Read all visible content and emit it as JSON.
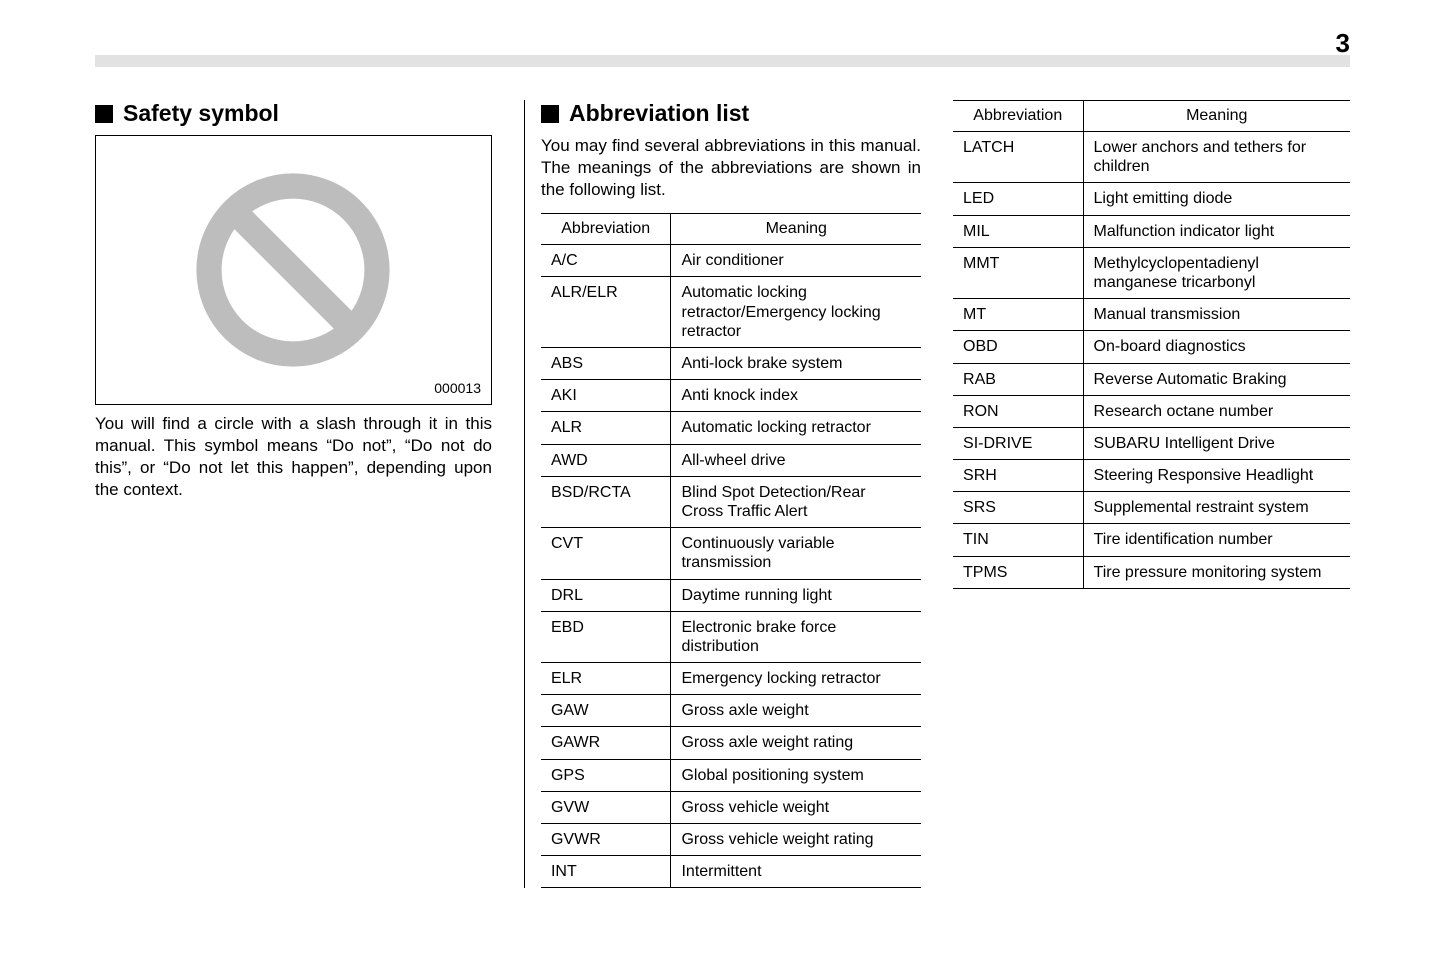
{
  "page_number": "3",
  "header_bar_color": "#e2e2e2",
  "background_color": "#ffffff",
  "text_color": "#000000",
  "safety_symbol": {
    "heading": "Safety symbol",
    "image_id": "000013",
    "circle_color": "#bdbdbd",
    "description": "You will find a circle with a slash through it in this manual. This symbol means “Do not”, “Do not do this”, or “Do not let this happen”, depending upon the context."
  },
  "abbreviation_list": {
    "heading": "Abbreviation list",
    "intro": "You may find several abbreviations in this manual. The meanings of the abbreviations are shown in the following list.",
    "columns": [
      "Abbreviation",
      "Meaning"
    ],
    "table1": [
      [
        "A/C",
        "Air conditioner"
      ],
      [
        "ALR/ELR",
        "Automatic locking retractor/Emergency locking retractor"
      ],
      [
        "ABS",
        "Anti-lock brake system"
      ],
      [
        "AKI",
        "Anti knock index"
      ],
      [
        "ALR",
        "Automatic locking retractor"
      ],
      [
        "AWD",
        "All-wheel drive"
      ],
      [
        "BSD/RCTA",
        "Blind Spot Detection/Rear Cross Traffic Alert"
      ],
      [
        "CVT",
        "Continuously variable transmission"
      ],
      [
        "DRL",
        "Daytime running light"
      ],
      [
        "EBD",
        "Electronic brake force distribution"
      ],
      [
        "ELR",
        "Emergency locking retractor"
      ],
      [
        "GAW",
        "Gross axle weight"
      ],
      [
        "GAWR",
        "Gross axle weight rating"
      ],
      [
        "GPS",
        "Global positioning system"
      ],
      [
        "GVW",
        "Gross vehicle weight"
      ],
      [
        "GVWR",
        "Gross vehicle weight rating"
      ],
      [
        "INT",
        "Intermittent"
      ]
    ],
    "table2": [
      [
        "LATCH",
        "Lower anchors and tethers for children"
      ],
      [
        "LED",
        "Light emitting diode"
      ],
      [
        "MIL",
        "Malfunction indicator light"
      ],
      [
        "MMT",
        "Methylcyclopentadienyl manganese tricarbonyl"
      ],
      [
        "MT",
        "Manual transmission"
      ],
      [
        "OBD",
        "On-board diagnostics"
      ],
      [
        "RAB",
        "Reverse Automatic Braking"
      ],
      [
        "RON",
        "Research octane number"
      ],
      [
        "SI-DRIVE",
        "SUBARU Intelligent Drive"
      ],
      [
        "SRH",
        "Steering Responsive Headlight"
      ],
      [
        "SRS",
        "Supplemental restraint system"
      ],
      [
        "TIN",
        "Tire identification number"
      ],
      [
        "TPMS",
        "Tire pressure monitoring system"
      ]
    ]
  }
}
